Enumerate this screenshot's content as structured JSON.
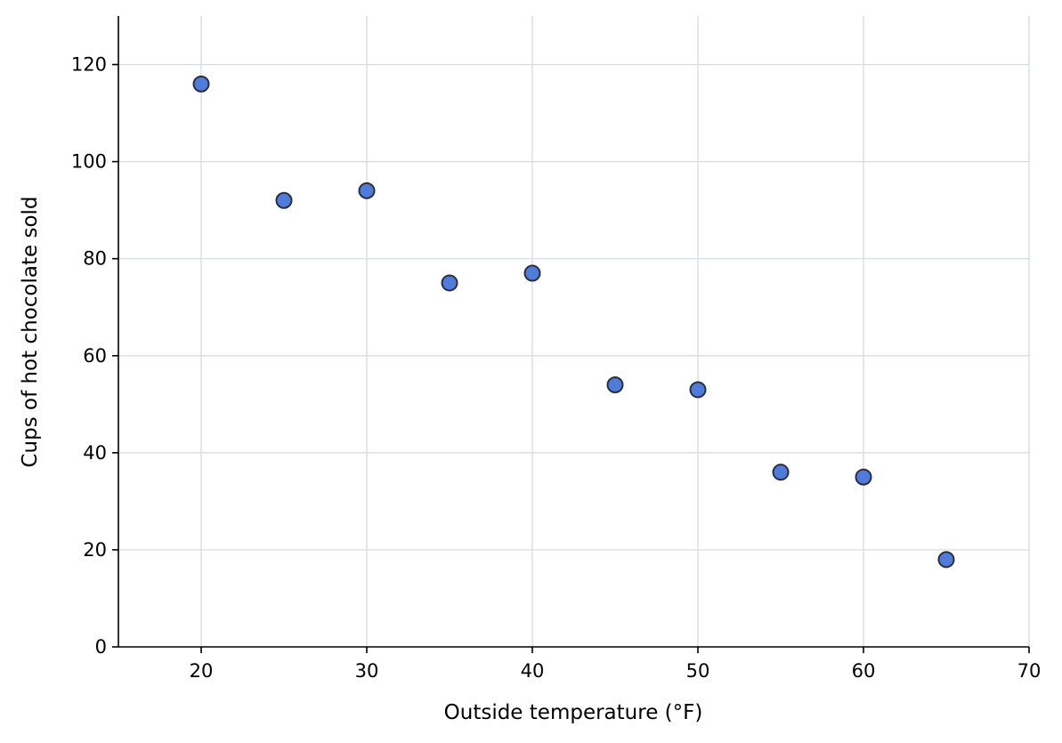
{
  "chart_data": {
    "type": "scatter",
    "title": "",
    "xlabel": "Outside temperature (°F)",
    "ylabel": "Cups of hot chocolate sold",
    "xlim": [
      15,
      70
    ],
    "ylim": [
      0,
      130
    ],
    "xticks": [
      20,
      30,
      40,
      50,
      60,
      70
    ],
    "yticks": [
      0,
      20,
      40,
      60,
      80,
      100,
      120
    ],
    "grid": true,
    "points": [
      {
        "x": 20,
        "y": 116
      },
      {
        "x": 25,
        "y": 92
      },
      {
        "x": 30,
        "y": 94
      },
      {
        "x": 35,
        "y": 75
      },
      {
        "x": 40,
        "y": 77
      },
      {
        "x": 45,
        "y": 54
      },
      {
        "x": 50,
        "y": 53
      },
      {
        "x": 55,
        "y": 36
      },
      {
        "x": 60,
        "y": 35
      },
      {
        "x": 65,
        "y": 18
      }
    ],
    "colors": {
      "marker_fill": "#4f7bdc",
      "marker_edge": "#2b2f3a",
      "grid": "#d3d9e0",
      "axis": "#000000"
    }
  }
}
